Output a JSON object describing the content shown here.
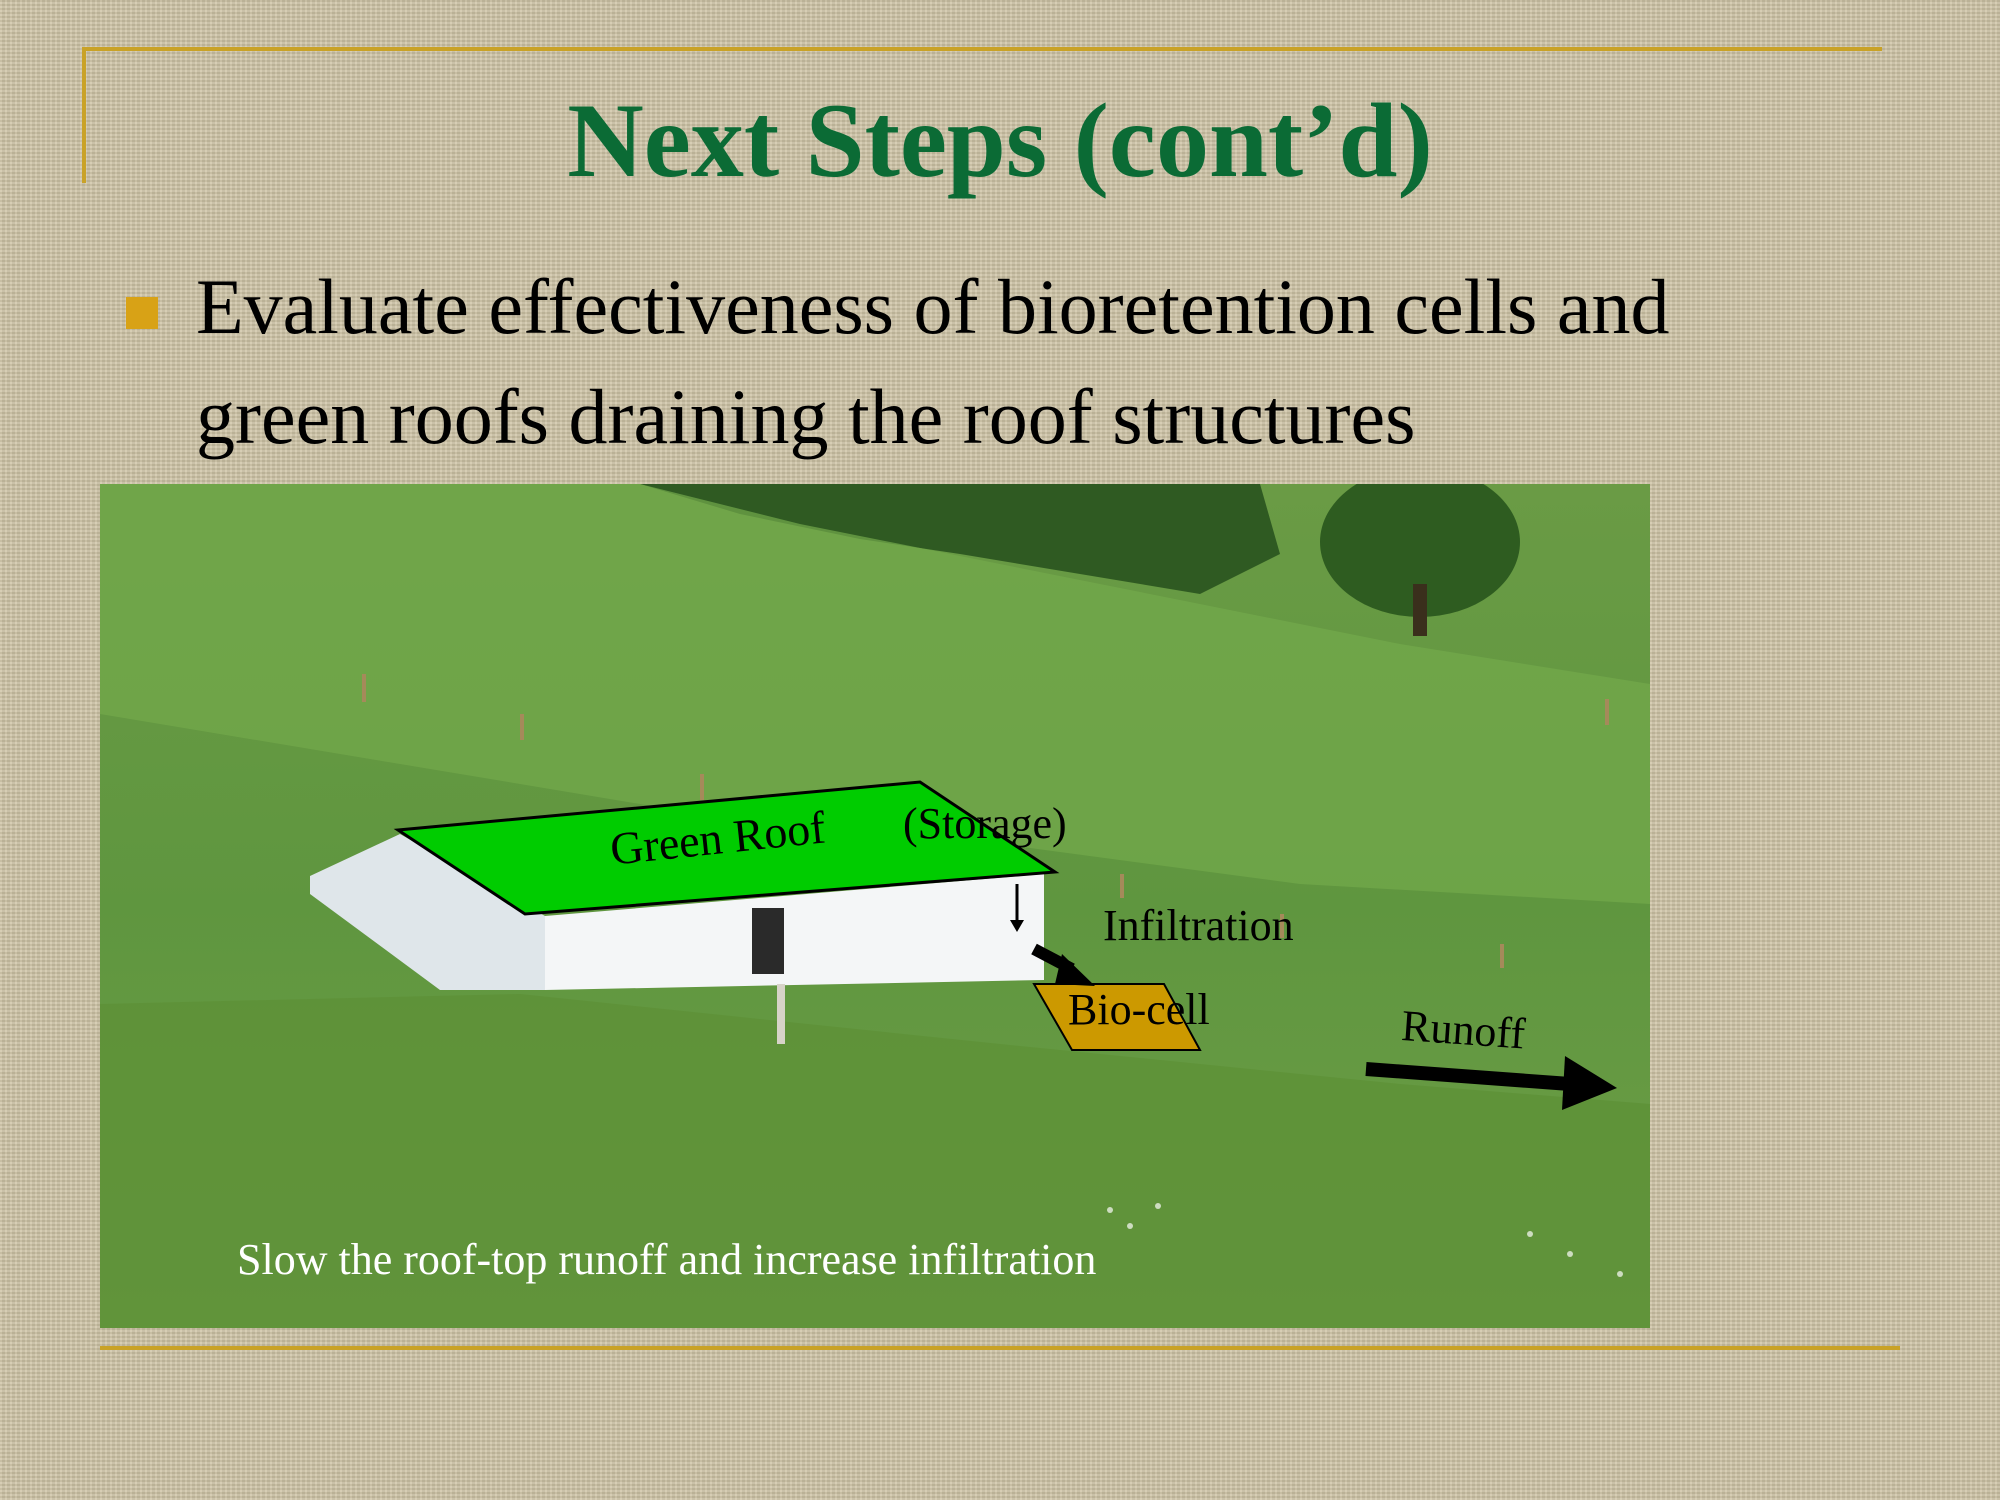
{
  "slide": {
    "title": "Next Steps (cont’d)",
    "bullet": "Evaluate effectiveness of bioretention cells and green roofs draining the roof structures",
    "accent_color": "#c9a227",
    "title_color": "#0b6b35"
  },
  "figure": {
    "labels": {
      "green_roof": "Green Roof",
      "storage": "(Storage)",
      "infiltration": "Infiltration",
      "bio_cell": "Bio-cell",
      "runoff": "Runoff"
    },
    "caption": "Slow the roof-top runoff and increase infiltration",
    "colors": {
      "green_roof": "#00cc00",
      "bio_cell": "#cc9900"
    }
  }
}
